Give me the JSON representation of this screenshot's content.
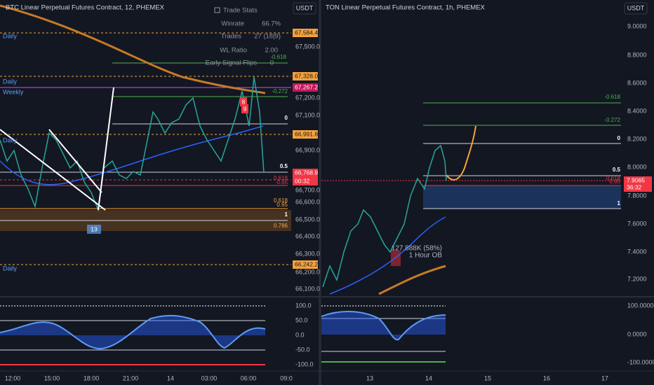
{
  "left": {
    "title": "BTC Linear Perpetual Futures Contract, 12, PHEMEX",
    "currency": "USDT",
    "price_labels": [
      "67,500.0",
      "67,200.0",
      "67,100.0",
      "66,900.0",
      "66,700.0",
      "66,600.0",
      "66,500.0",
      "66,400.0",
      "66,300.0",
      "66,200.0",
      "66,100.0"
    ],
    "price_tags": [
      "67,584.4",
      "67,328.0",
      "67,267.2",
      "66,991.8",
      "66,768.9",
      "00:32",
      "66,242.2"
    ],
    "osc_labels": [
      "100.0",
      "50.0",
      "0.0",
      "-50.0",
      "-100.0"
    ],
    "time_labels": [
      "12:00",
      "15:00",
      "18:00",
      "21:00",
      "14",
      "03:00",
      "06:00",
      "09:0"
    ],
    "ma_labels": [
      "Daily",
      "Daily",
      "Weekly",
      "Daily",
      "Daily"
    ],
    "fib_labels": [
      "-0.618",
      "-0.272",
      "0",
      "0.5",
      "0.618",
      "0.65",
      "0.618",
      "0.65",
      "1",
      "0.786"
    ],
    "signal_labels": [
      "8",
      "9",
      "13"
    ],
    "trade_stats": {
      "title": "Trade Stats",
      "rows": [
        [
          "Winrate",
          "66.7%"
        ],
        [
          "Trades",
          "27 (18|9)"
        ],
        [
          "WL Ratio",
          "2.00"
        ],
        [
          "Early Signal Flips",
          "0"
        ]
      ]
    }
  },
  "right": {
    "title": "TON Linear Perpetual Futures Contract, 1h, PHEMEX",
    "currency": "USDT",
    "price_labels": [
      "9.0000",
      "8.8000",
      "8.6000",
      "8.4000",
      "8.2000",
      "8.0000",
      "7.8000",
      "7.6000",
      "7.4000",
      "7.2000"
    ],
    "price_tags": [
      "7.9065",
      "36:32"
    ],
    "osc_labels": [
      "100.0000",
      "0.0000",
      "-100.0000"
    ],
    "time_labels": [
      "13",
      "14",
      "15",
      "16",
      "17"
    ],
    "fib_labels": [
      "-0.618",
      "-0.272",
      "0",
      "0.5",
      "0.618",
      "0.65",
      "1"
    ],
    "annotations": [
      "127.888K (58%)",
      "1 Hour OB"
    ]
  }
}
